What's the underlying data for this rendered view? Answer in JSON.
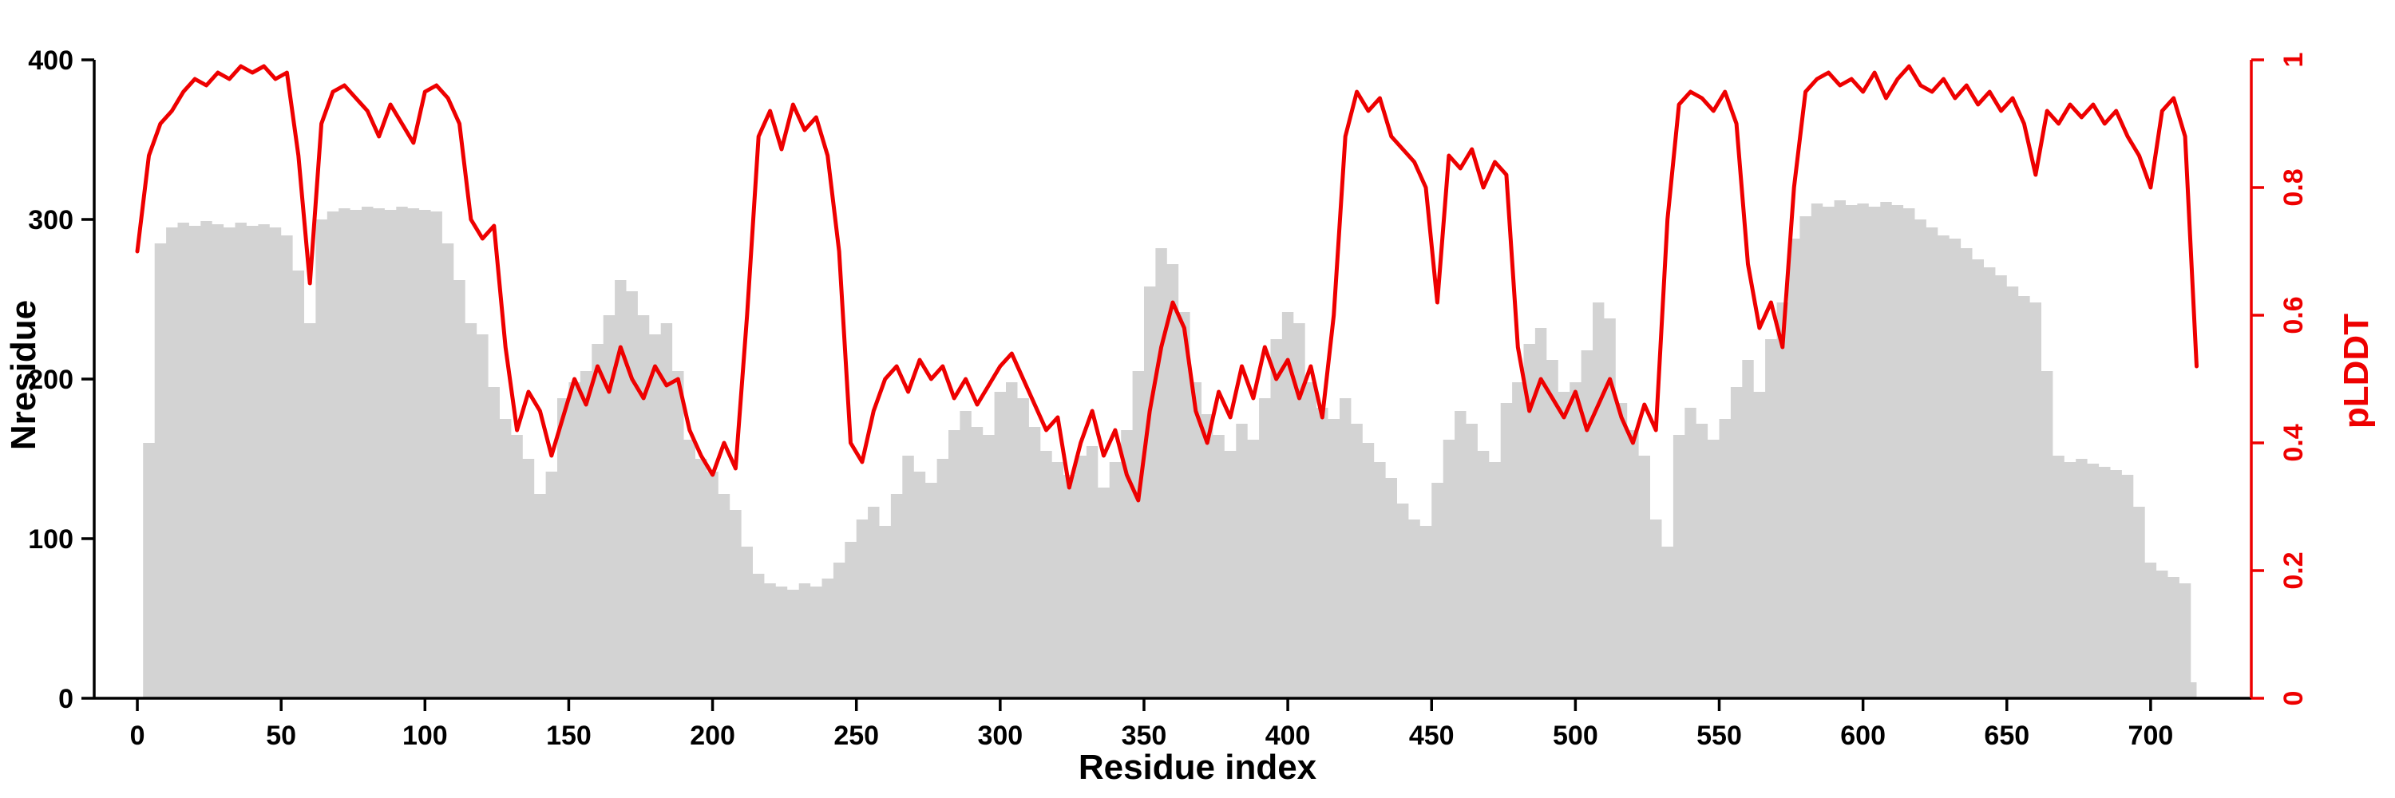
{
  "chart_data": {
    "type": "line",
    "title": "",
    "xlabel": "Residue index",
    "ylabel_left": "Nresidue",
    "ylabel_right": "pLDDT",
    "xlim": [
      -15,
      735
    ],
    "ylim_left": [
      0,
      400
    ],
    "ylim_right": [
      0,
      1
    ],
    "xticks": [
      0,
      50,
      100,
      150,
      200,
      250,
      300,
      350,
      400,
      450,
      500,
      550,
      600,
      650,
      700
    ],
    "yticks_left": [
      0,
      100,
      200,
      300,
      400
    ],
    "yticks_right": [
      0,
      0.2,
      0.4,
      0.6,
      0.8,
      1
    ],
    "grid": false,
    "legend": "none",
    "colors": {
      "area": "#d3d3d3",
      "line": "#ee0000",
      "axis": "#000000"
    },
    "x": [
      0,
      4,
      8,
      12,
      16,
      20,
      24,
      28,
      32,
      36,
      40,
      44,
      48,
      52,
      56,
      60,
      64,
      68,
      72,
      76,
      80,
      84,
      88,
      92,
      96,
      100,
      104,
      108,
      112,
      116,
      120,
      124,
      128,
      132,
      136,
      140,
      144,
      148,
      152,
      156,
      160,
      164,
      168,
      172,
      176,
      180,
      184,
      188,
      192,
      196,
      200,
      204,
      208,
      212,
      216,
      220,
      224,
      228,
      232,
      236,
      240,
      244,
      248,
      252,
      256,
      260,
      264,
      268,
      272,
      276,
      280,
      284,
      288,
      292,
      296,
      300,
      304,
      308,
      312,
      316,
      320,
      324,
      328,
      332,
      336,
      340,
      344,
      348,
      352,
      356,
      360,
      364,
      368,
      372,
      376,
      380,
      384,
      388,
      392,
      396,
      400,
      404,
      408,
      412,
      416,
      420,
      424,
      428,
      432,
      436,
      440,
      444,
      448,
      452,
      456,
      460,
      464,
      468,
      472,
      476,
      480,
      484,
      488,
      492,
      496,
      500,
      504,
      508,
      512,
      516,
      520,
      524,
      528,
      532,
      536,
      540,
      544,
      548,
      552,
      556,
      560,
      564,
      568,
      572,
      576,
      580,
      584,
      588,
      592,
      596,
      600,
      604,
      608,
      612,
      616,
      620,
      624,
      628,
      632,
      636,
      640,
      644,
      648,
      652,
      656,
      660,
      664,
      668,
      672,
      676,
      680,
      684,
      688,
      692,
      696,
      700,
      704,
      708,
      712,
      716
    ],
    "series": [
      {
        "name": "Nresidue",
        "axis": "left",
        "style": "step-area",
        "values": [
          0,
          160,
          285,
          295,
          298,
          296,
          299,
          297,
          295,
          298,
          296,
          297,
          295,
          290,
          268,
          235,
          300,
          305,
          307,
          306,
          308,
          307,
          306,
          308,
          307,
          306,
          305,
          285,
          262,
          235,
          228,
          195,
          175,
          165,
          150,
          128,
          142,
          188,
          198,
          205,
          222,
          240,
          262,
          255,
          240,
          228,
          235,
          205,
          162,
          150,
          142,
          128,
          118,
          95,
          78,
          72,
          70,
          68,
          72,
          70,
          75,
          85,
          98,
          112,
          120,
          108,
          128,
          152,
          142,
          135,
          150,
          168,
          180,
          170,
          165,
          192,
          198,
          188,
          170,
          155,
          148,
          140,
          152,
          158,
          132,
          148,
          168,
          205,
          258,
          282,
          272,
          242,
          198,
          178,
          165,
          155,
          172,
          162,
          188,
          225,
          242,
          235,
          198,
          182,
          175,
          188,
          172,
          160,
          148,
          138,
          122,
          112,
          108,
          135,
          162,
          180,
          172,
          155,
          148,
          185,
          198,
          222,
          232,
          212,
          192,
          198,
          218,
          248,
          238,
          185,
          168,
          152,
          112,
          95,
          165,
          182,
          172,
          162,
          175,
          195,
          212,
          192,
          225,
          248,
          288,
          302,
          310,
          308,
          312,
          309,
          310,
          308,
          311,
          309,
          307,
          300,
          295,
          290,
          288,
          282,
          275,
          270,
          265,
          258,
          252,
          248,
          205,
          152,
          148,
          150,
          147,
          145,
          143,
          140,
          120,
          85,
          80,
          76,
          72,
          10
        ]
      },
      {
        "name": "pLDDT",
        "axis": "right",
        "style": "line",
        "values": [
          0.7,
          0.85,
          0.9,
          0.92,
          0.95,
          0.97,
          0.96,
          0.98,
          0.97,
          0.99,
          0.98,
          0.99,
          0.97,
          0.98,
          0.85,
          0.65,
          0.9,
          0.95,
          0.96,
          0.94,
          0.92,
          0.88,
          0.93,
          0.9,
          0.87,
          0.95,
          0.96,
          0.94,
          0.9,
          0.75,
          0.72,
          0.74,
          0.55,
          0.42,
          0.48,
          0.45,
          0.38,
          0.44,
          0.5,
          0.46,
          0.52,
          0.48,
          0.55,
          0.5,
          0.47,
          0.52,
          0.49,
          0.5,
          0.42,
          0.38,
          0.35,
          0.4,
          0.36,
          0.6,
          0.88,
          0.92,
          0.86,
          0.93,
          0.89,
          0.91,
          0.85,
          0.7,
          0.4,
          0.37,
          0.45,
          0.5,
          0.52,
          0.48,
          0.53,
          0.5,
          0.52,
          0.47,
          0.5,
          0.46,
          0.49,
          0.52,
          0.54,
          0.5,
          0.46,
          0.42,
          0.44,
          0.33,
          0.4,
          0.45,
          0.38,
          0.42,
          0.35,
          0.31,
          0.45,
          0.55,
          0.62,
          0.58,
          0.45,
          0.4,
          0.48,
          0.44,
          0.52,
          0.47,
          0.55,
          0.5,
          0.53,
          0.47,
          0.52,
          0.44,
          0.6,
          0.88,
          0.95,
          0.92,
          0.94,
          0.88,
          0.86,
          0.84,
          0.8,
          0.62,
          0.85,
          0.83,
          0.86,
          0.8,
          0.84,
          0.82,
          0.55,
          0.45,
          0.5,
          0.47,
          0.44,
          0.48,
          0.42,
          0.46,
          0.5,
          0.44,
          0.4,
          0.46,
          0.42,
          0.75,
          0.93,
          0.95,
          0.94,
          0.92,
          0.95,
          0.9,
          0.68,
          0.58,
          0.62,
          0.55,
          0.8,
          0.95,
          0.97,
          0.98,
          0.96,
          0.97,
          0.95,
          0.98,
          0.94,
          0.97,
          0.99,
          0.96,
          0.95,
          0.97,
          0.94,
          0.96,
          0.93,
          0.95,
          0.92,
          0.94,
          0.9,
          0.82,
          0.92,
          0.9,
          0.93,
          0.91,
          0.93,
          0.9,
          0.92,
          0.88,
          0.85,
          0.8,
          0.92,
          0.94,
          0.88,
          0.52
        ]
      }
    ]
  }
}
